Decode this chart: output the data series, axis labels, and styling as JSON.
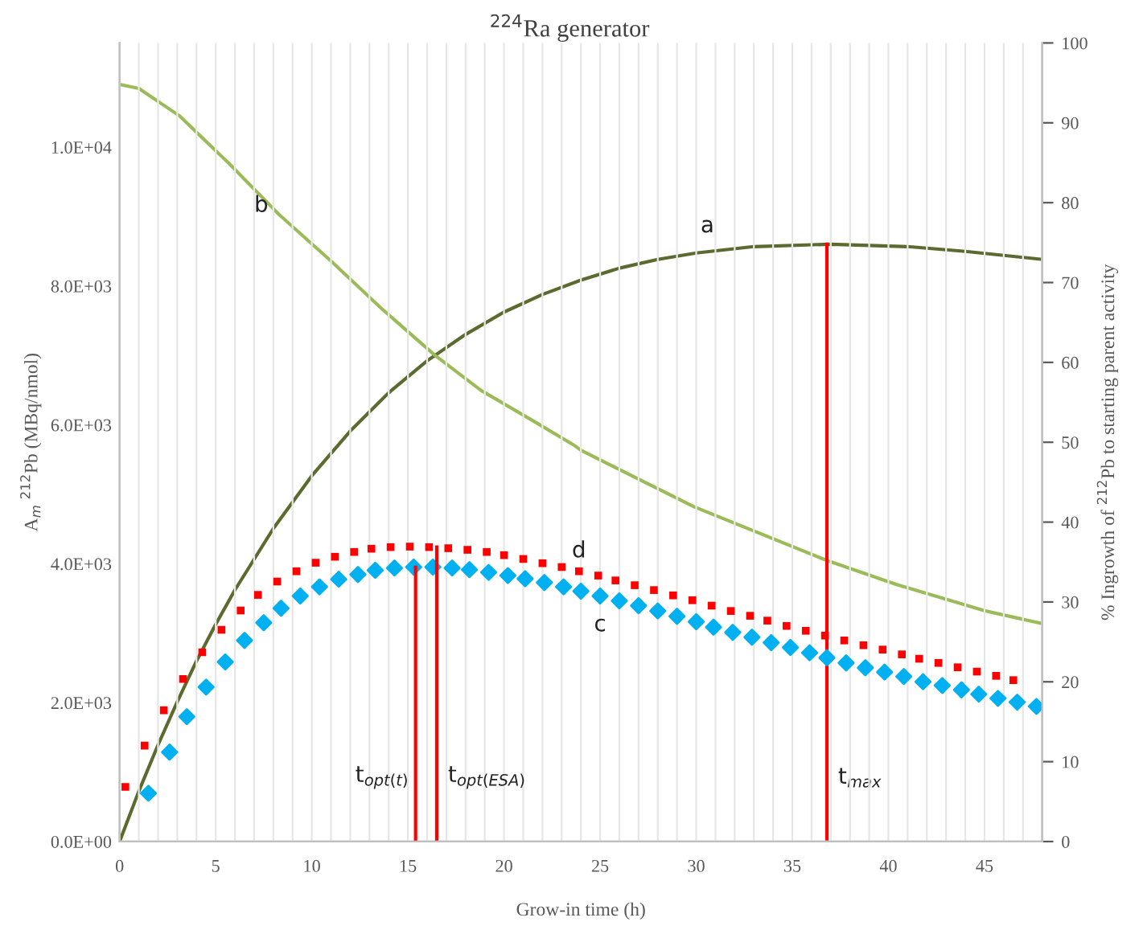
{
  "chart_data": {
    "type": "line",
    "title": "$^{224}$Ra generator",
    "xlabel": "Grow-in time (h)",
    "ylabel": "A$_{m}$ $^{212}$Pb (MBq/nmol)",
    "y2label": "% Ingrowth of $^{212}$Pb to starting parent activity",
    "xlim": [
      0,
      48
    ],
    "xticks": [
      0,
      {
        "value": 1,
        "label": null
      },
      {
        "value": 2,
        "label": null
      },
      {
        "value": 3,
        "label": null
      },
      {
        "value": 4,
        "label": null
      },
      5,
      {
        "value": 6,
        "label": null
      },
      {
        "value": 7,
        "label": null
      },
      {
        "value": 8,
        "label": null
      },
      {
        "value": 9,
        "label": null
      },
      10,
      {
        "value": 11,
        "label": null
      },
      {
        "value": 12,
        "label": null
      },
      {
        "value": 13,
        "label": null
      },
      {
        "value": 14,
        "label": null
      },
      15,
      {
        "value": 16,
        "label": null
      },
      {
        "value": 17,
        "label": null
      },
      {
        "value": 18,
        "label": null
      },
      {
        "value": 19,
        "label": null
      },
      20,
      {
        "value": 21,
        "label": null
      },
      {
        "value": 22,
        "label": null
      },
      {
        "value": 23,
        "label": null
      },
      {
        "value": 24,
        "label": null
      },
      25,
      {
        "value": 26,
        "label": null
      },
      {
        "value": 27,
        "label": null
      },
      {
        "value": 28,
        "label": null
      },
      {
        "value": 29,
        "label": null
      },
      30,
      {
        "value": 31,
        "label": null
      },
      {
        "value": 32,
        "label": null
      },
      {
        "value": 33,
        "label": null
      },
      {
        "value": 34,
        "label": null
      },
      35,
      {
        "value": 36,
        "label": null
      },
      {
        "value": 37,
        "label": null
      },
      {
        "value": 38,
        "label": null
      },
      {
        "value": 39,
        "label": null
      },
      40,
      {
        "value": 41,
        "label": null
      },
      {
        "value": 42,
        "label": null
      },
      {
        "value": 43,
        "label": null
      },
      {
        "value": 44,
        "label": null
      },
      45,
      {
        "value": 46,
        "label": null
      },
      {
        "value": 47,
        "label": null
      },
      {
        "value": 48,
        "label": null
      }
    ],
    "ylim": [
      0,
      11500
    ],
    "yticks": [
      {
        "value": 0,
        "label": "0.0E+00"
      },
      {
        "value": 2000,
        "label": "2.0E+03"
      },
      {
        "value": 4000,
        "label": "4.0E+03"
      },
      {
        "value": 6000,
        "label": "6.0E+03"
      },
      {
        "value": 8000,
        "label": "8.0E+03"
      },
      {
        "value": 10000,
        "label": "1.0E+04"
      }
    ],
    "y2lim": [
      0,
      100
    ],
    "y2ticks": [
      0,
      10,
      20,
      30,
      40,
      50,
      60,
      70,
      80,
      90,
      100
    ],
    "grid": "x",
    "legend": false,
    "series": [
      {
        "name": "a",
        "axis": "y2",
        "color": "#5b6b2f",
        "marker": "none",
        "line_style": "solid",
        "x": [
          0,
          1,
          2,
          3,
          4,
          5,
          6,
          8,
          10,
          12,
          14,
          16,
          18,
          20,
          22,
          24,
          26,
          28,
          30,
          33,
          37,
          41,
          44,
          48
        ],
        "values": [
          0,
          6.3,
          12.1,
          17.5,
          22.6,
          27.2,
          31.5,
          39.2,
          45.8,
          51.4,
          56.2,
          60.2,
          63.5,
          66.3,
          68.5,
          70.3,
          71.8,
          72.9,
          73.7,
          74.5,
          74.8,
          74.5,
          73.9,
          72.9
        ]
      },
      {
        "name": "b",
        "axis": "y2",
        "color": "#9bbb59",
        "marker": "none",
        "line_style": "solid",
        "x": [
          0,
          1,
          3.1,
          5.7,
          8.3,
          11,
          13.6,
          16.4,
          18.8,
          21.5,
          23.6,
          24,
          29.9,
          36.8,
          40.4,
          45,
          48
        ],
        "values": [
          94.8,
          94.3,
          90.9,
          84.9,
          78.5,
          72.7,
          66.8,
          60.9,
          56.5,
          52.7,
          49.7,
          49.0,
          41.9,
          35.2,
          32.2,
          28.9,
          27.3
        ]
      },
      {
        "name": "c",
        "type": "scatter",
        "axis": "y",
        "color": "#00b0f0",
        "marker": "diamond",
        "x": [
          1.5,
          2.6,
          3.5,
          4.5,
          5.5,
          6.5,
          7.5,
          8.4,
          9.4,
          10.4,
          11.4,
          12.4,
          13.3,
          14.3,
          15.3,
          16.3,
          17.3,
          18.2,
          19.2,
          20.2,
          21.1,
          22.1,
          23.1,
          24.0,
          25.0,
          26.0,
          27.0,
          28.0,
          29.0,
          30.0,
          30.9,
          31.9,
          32.9,
          33.9,
          34.9,
          35.9,
          36.8,
          37.8,
          38.8,
          39.8,
          40.8,
          41.8,
          42.8,
          43.8,
          44.7,
          45.7,
          46.7,
          47.7
        ],
        "values": [
          695,
          1288,
          1798,
          2224,
          2586,
          2896,
          3151,
          3360,
          3536,
          3668,
          3777,
          3846,
          3906,
          3939,
          3953,
          3953,
          3939,
          3916,
          3876,
          3830,
          3784,
          3730,
          3668,
          3606,
          3536,
          3466,
          3397,
          3320,
          3244,
          3166,
          3088,
          3012,
          2942,
          2864,
          2795,
          2718,
          2648,
          2572,
          2502,
          2440,
          2377,
          2301,
          2247,
          2185,
          2122,
          2062,
          2007,
          1946
        ]
      },
      {
        "name": "d",
        "type": "scatter",
        "axis": "y",
        "color": "#ff0000",
        "marker": "square",
        "x": [
          0.3,
          1.3,
          2.3,
          3.3,
          4.3,
          5.3,
          6.3,
          7.2,
          8.2,
          9.2,
          10.2,
          11.2,
          12.2,
          13.1,
          14.1,
          15.1,
          16.1,
          17.1,
          18.1,
          19.1,
          20.0,
          21.0,
          22.0,
          23.0,
          23.9,
          24.9,
          25.8,
          26.8,
          27.8,
          28.8,
          29.8,
          30.8,
          31.8,
          32.8,
          33.7,
          34.7,
          35.7,
          36.7,
          37.7,
          38.7,
          39.7,
          40.7,
          41.6,
          42.6,
          43.6,
          44.6,
          45.6,
          46.5
        ],
        "values": [
          787,
          1382,
          1891,
          2340,
          2725,
          3049,
          3327,
          3552,
          3744,
          3892,
          4015,
          4101,
          4170,
          4217,
          4240,
          4247,
          4240,
          4224,
          4201,
          4170,
          4124,
          4069,
          4008,
          3953,
          3892,
          3830,
          3760,
          3691,
          3621,
          3545,
          3475,
          3397,
          3320,
          3251,
          3181,
          3105,
          3035,
          2966,
          2896,
          2827,
          2764,
          2695,
          2632,
          2572,
          2509,
          2447,
          2386,
          2324
        ]
      },
      {
        "name": "t$_{opt(t)}$",
        "axis": "y",
        "color": "#ff0000",
        "marker": "none",
        "line_style": "solid",
        "x": [
          15.4,
          15.4
        ],
        "values": [
          0,
          3950
        ]
      },
      {
        "name": "t$_{opt(ESA)}$",
        "axis": "y",
        "color": "#ff0000",
        "marker": "none",
        "line_style": "solid",
        "x": [
          16.5,
          16.5
        ],
        "values": [
          0,
          4240
        ]
      },
      {
        "name": "t$_{max}$",
        "axis": "y2",
        "color": "#ff0000",
        "marker": "none",
        "line_style": "solid",
        "x": [
          36.8,
          36.8
        ],
        "values": [
          0,
          74.8
        ]
      }
    ]
  }
}
